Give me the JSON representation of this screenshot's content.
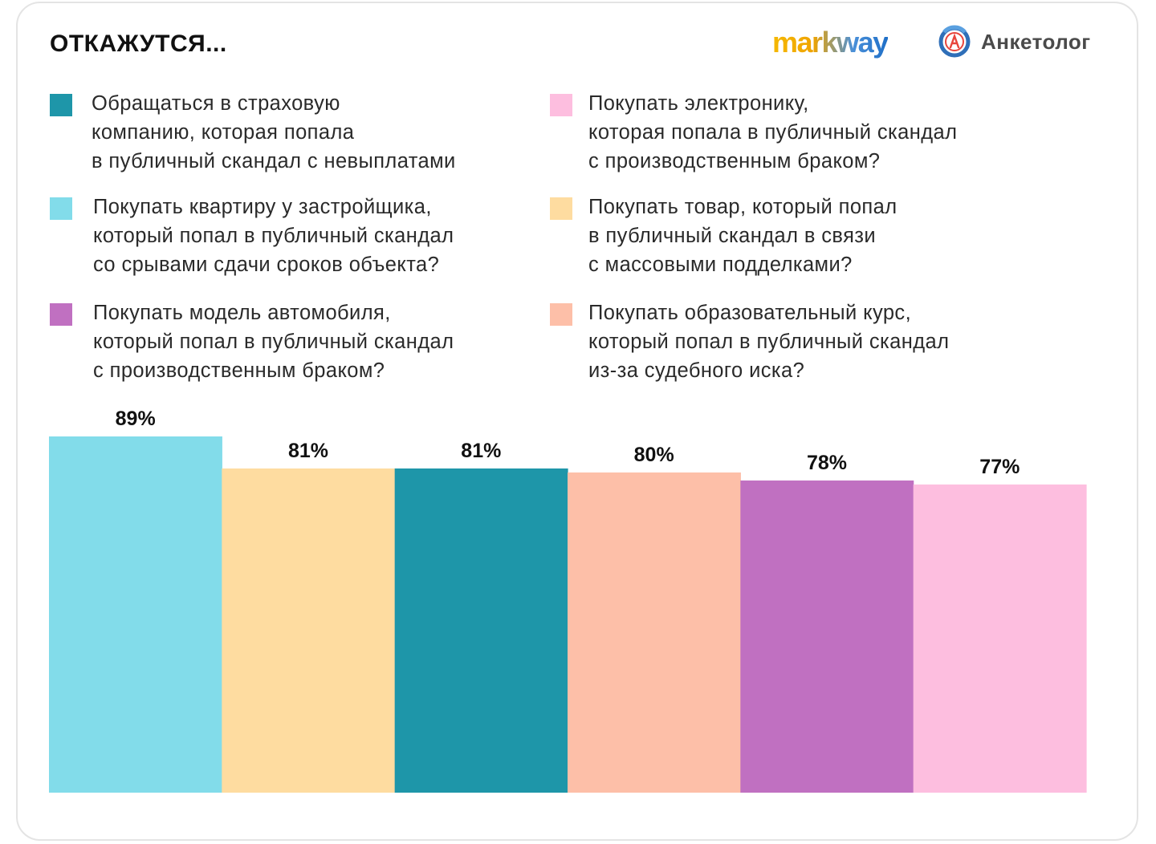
{
  "header": {
    "title": "ОТКАЖУТСЯ...",
    "logo_markway": "markway",
    "logo_anketolog": "Анкетолог"
  },
  "legend": [
    {
      "label": "Обращаться в страховую\nкомпанию, которая попала\nв публичный скандал с невыплатами",
      "color": "#1e96a9"
    },
    {
      "label": "Покупать квартиру у застройщика,\nкоторый попал в публичный скандал\nсо срывами сдачи сроков объекта?",
      "color": "#82dcea"
    },
    {
      "label": "Покупать модель автомобиля,\nкоторый попал в публичный скандал\nс производственным браком?",
      "color": "#c070c1"
    },
    {
      "label": "Покупать электронику,\nкоторая попала в публичный скандал\nс производственным браком?",
      "color": "#fdbedf"
    },
    {
      "label": "Покупать товар, который попал\nв публичный скандал в связи\nс массовыми подделками?",
      "color": "#fedca0"
    },
    {
      "label": "Покупать образовательный курс,\nкоторый попал в публичный скандал\nиз-за судебного иска?",
      "color": "#fdbfa8"
    }
  ],
  "chart_data": {
    "type": "bar",
    "categories": [
      "Покупать квартиру у застройщика, который попал в публичный скандал со срывами сдачи сроков объекта?",
      "Покупать товар, который попал в публичный скандал в связи с массовыми подделками?",
      "Обращаться в страховую компанию, которая попала в публичный скандал с невыплатами",
      "Покупать образовательный курс, который попал в публичный скандал из-за судебного иска?",
      "Покупать модель автомобиля, который попал в публичный скандал с производственным браком?",
      "Покупать электронику, которая попала в публичный скандал с производственным браком?"
    ],
    "values": [
      89,
      81,
      81,
      80,
      78,
      77
    ],
    "value_labels": [
      "89%",
      "81%",
      "81%",
      "80%",
      "78%",
      "77%"
    ],
    "colors": [
      "#82dcea",
      "#fedca0",
      "#1e96a9",
      "#fdbfa8",
      "#c070c1",
      "#fdbedf"
    ],
    "title": "ОТКАЖУТСЯ...",
    "unit": "%",
    "legend_position": "top",
    "grid": false
  }
}
